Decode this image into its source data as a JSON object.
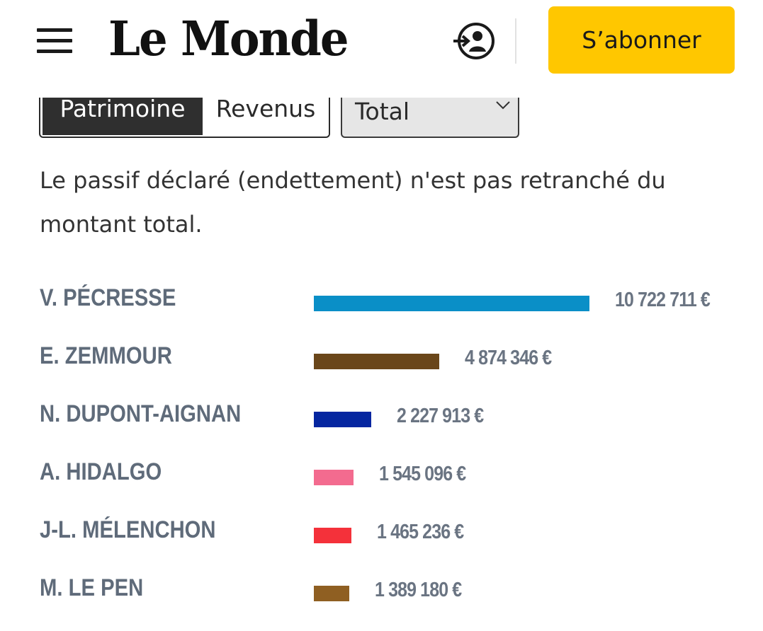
{
  "header": {
    "logo": "Le Monde",
    "subscribe_label": "S’abonner",
    "menu_icon": "hamburger-menu-icon",
    "account_icon": "account-login-icon"
  },
  "controls": {
    "toggle_patrimoine": "Patrimoine",
    "toggle_revenus": "Revenus",
    "select_value": "Total"
  },
  "note": "Le passif déclaré (endettement) n'est pas retranché du montant total.",
  "colors": {
    "subscribe": "#ffc700",
    "label": "#5f6b7a"
  },
  "chart_data": {
    "type": "bar",
    "orientation": "horizontal",
    "categories": [
      "V. PÉCRESSE",
      "E. ZEMMOUR",
      "N. DUPONT-AIGNAN",
      "A. HIDALGO",
      "J-L. MÉLENCHON",
      "M. LE PEN"
    ],
    "values": [
      10722711,
      4874346,
      2227913,
      1545096,
      1465236,
      1389180
    ],
    "value_labels": [
      "10 722 711 €",
      "4 874 346 €",
      "2 227 913 €",
      "1 545 096 €",
      "1 465 236 €",
      "1 389 180 €"
    ],
    "bar_colors": [
      "#0a8fc7",
      "#6a461a",
      "#0526a0",
      "#f36b8f",
      "#f4313a",
      "#8f5f22"
    ],
    "xlim": [
      0,
      10722711
    ],
    "title": "",
    "xlabel": "",
    "ylabel": "",
    "grid": false
  }
}
